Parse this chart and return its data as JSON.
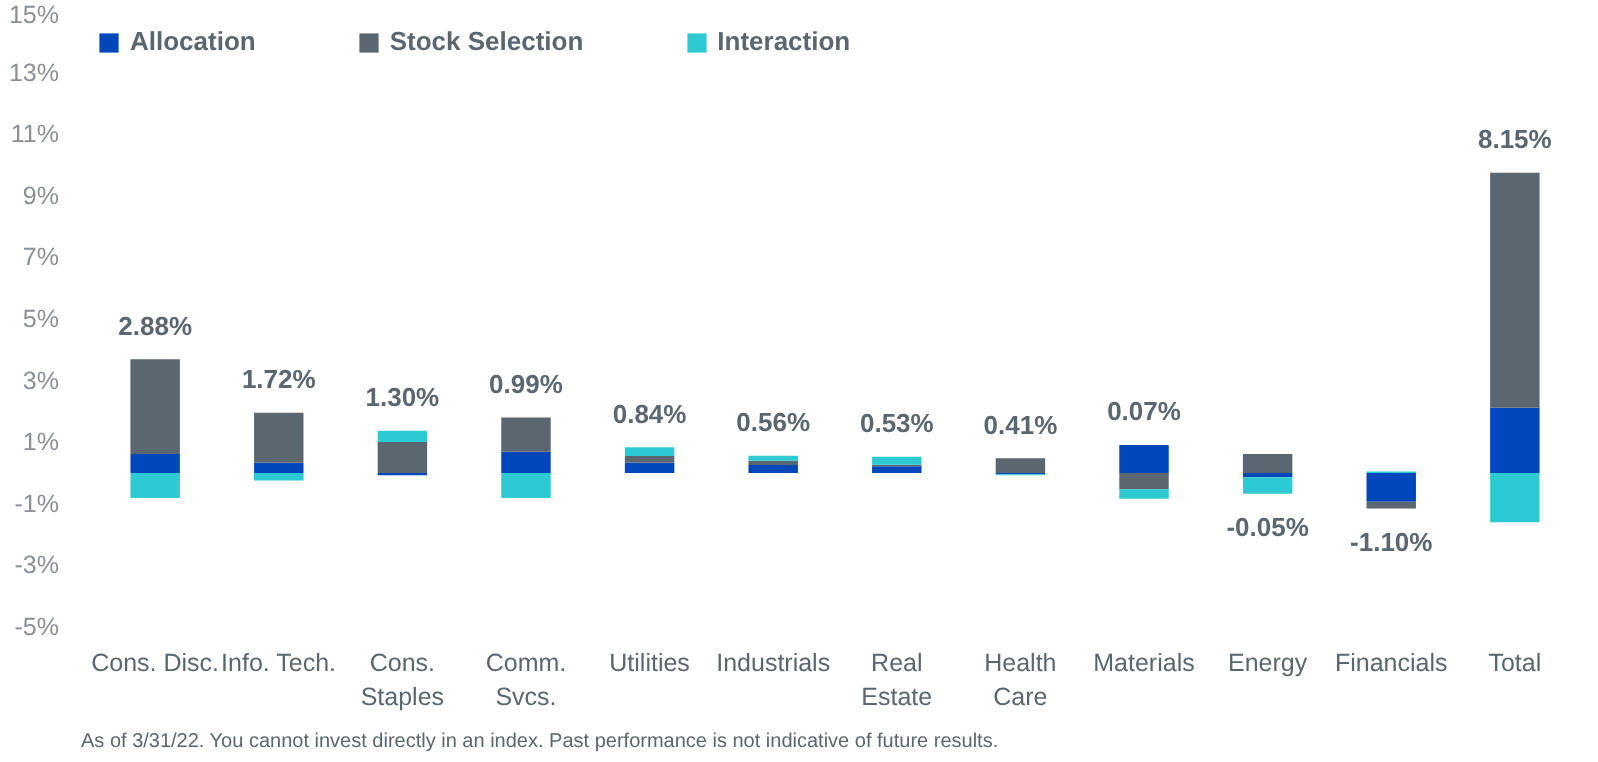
{
  "chart_data": {
    "type": "bar",
    "stacked": true,
    "categories": [
      "Cons. Disc.",
      "Info. Tech.",
      "Cons.\nStaples",
      "Comm.\nSvcs.",
      "Utilities",
      "Industrials",
      "Real\nEstate",
      "Health\nCare",
      "Materials",
      "Energy",
      "Financials",
      "Total"
    ],
    "series": [
      {
        "name": "Allocation",
        "color": "#0047bb",
        "values": [
          0.62,
          0.33,
          -0.07,
          0.69,
          0.33,
          0.26,
          0.22,
          -0.04,
          0.91,
          -0.14,
          -0.93,
          2.12
        ]
      },
      {
        "name": "Stock Selection",
        "color": "#5b6770",
        "values": [
          3.07,
          1.63,
          1.01,
          1.11,
          0.22,
          0.14,
          0.05,
          0.48,
          -0.53,
          0.62,
          -0.22,
          7.63
        ]
      },
      {
        "name": "Interaction",
        "color": "#2ecad3",
        "values": [
          -0.81,
          -0.24,
          0.36,
          -0.81,
          0.29,
          0.16,
          0.26,
          -0.03,
          -0.31,
          -0.53,
          0.05,
          -1.6
        ]
      }
    ],
    "totals": [
      "2.88%",
      "1.72%",
      "1.30%",
      "0.99%",
      "0.84%",
      "0.56%",
      "0.53%",
      "0.41%",
      "0.07%",
      "-0.05%",
      "-1.10%",
      "8.15%"
    ],
    "ylim": [
      -5,
      15
    ],
    "yticks": [
      {
        "value": -5,
        "label": "-5%"
      },
      {
        "value": -3,
        "label": "-3%"
      },
      {
        "value": -1,
        "label": "-1%"
      },
      {
        "value": 1,
        "label": "1%"
      },
      {
        "value": 3,
        "label": "3%"
      },
      {
        "value": 5,
        "label": "5%"
      },
      {
        "value": 7,
        "label": "7%"
      },
      {
        "value": 9,
        "label": "9%"
      },
      {
        "value": 11,
        "label": "11%"
      },
      {
        "value": 13,
        "label": "13%"
      },
      {
        "value": 15,
        "label": "15%"
      }
    ],
    "grid": false,
    "legend": "top left",
    "annotations": [
      "As of 3/31/22. You cannot invest directly in an index. Past performance is not indicative of future results."
    ]
  }
}
